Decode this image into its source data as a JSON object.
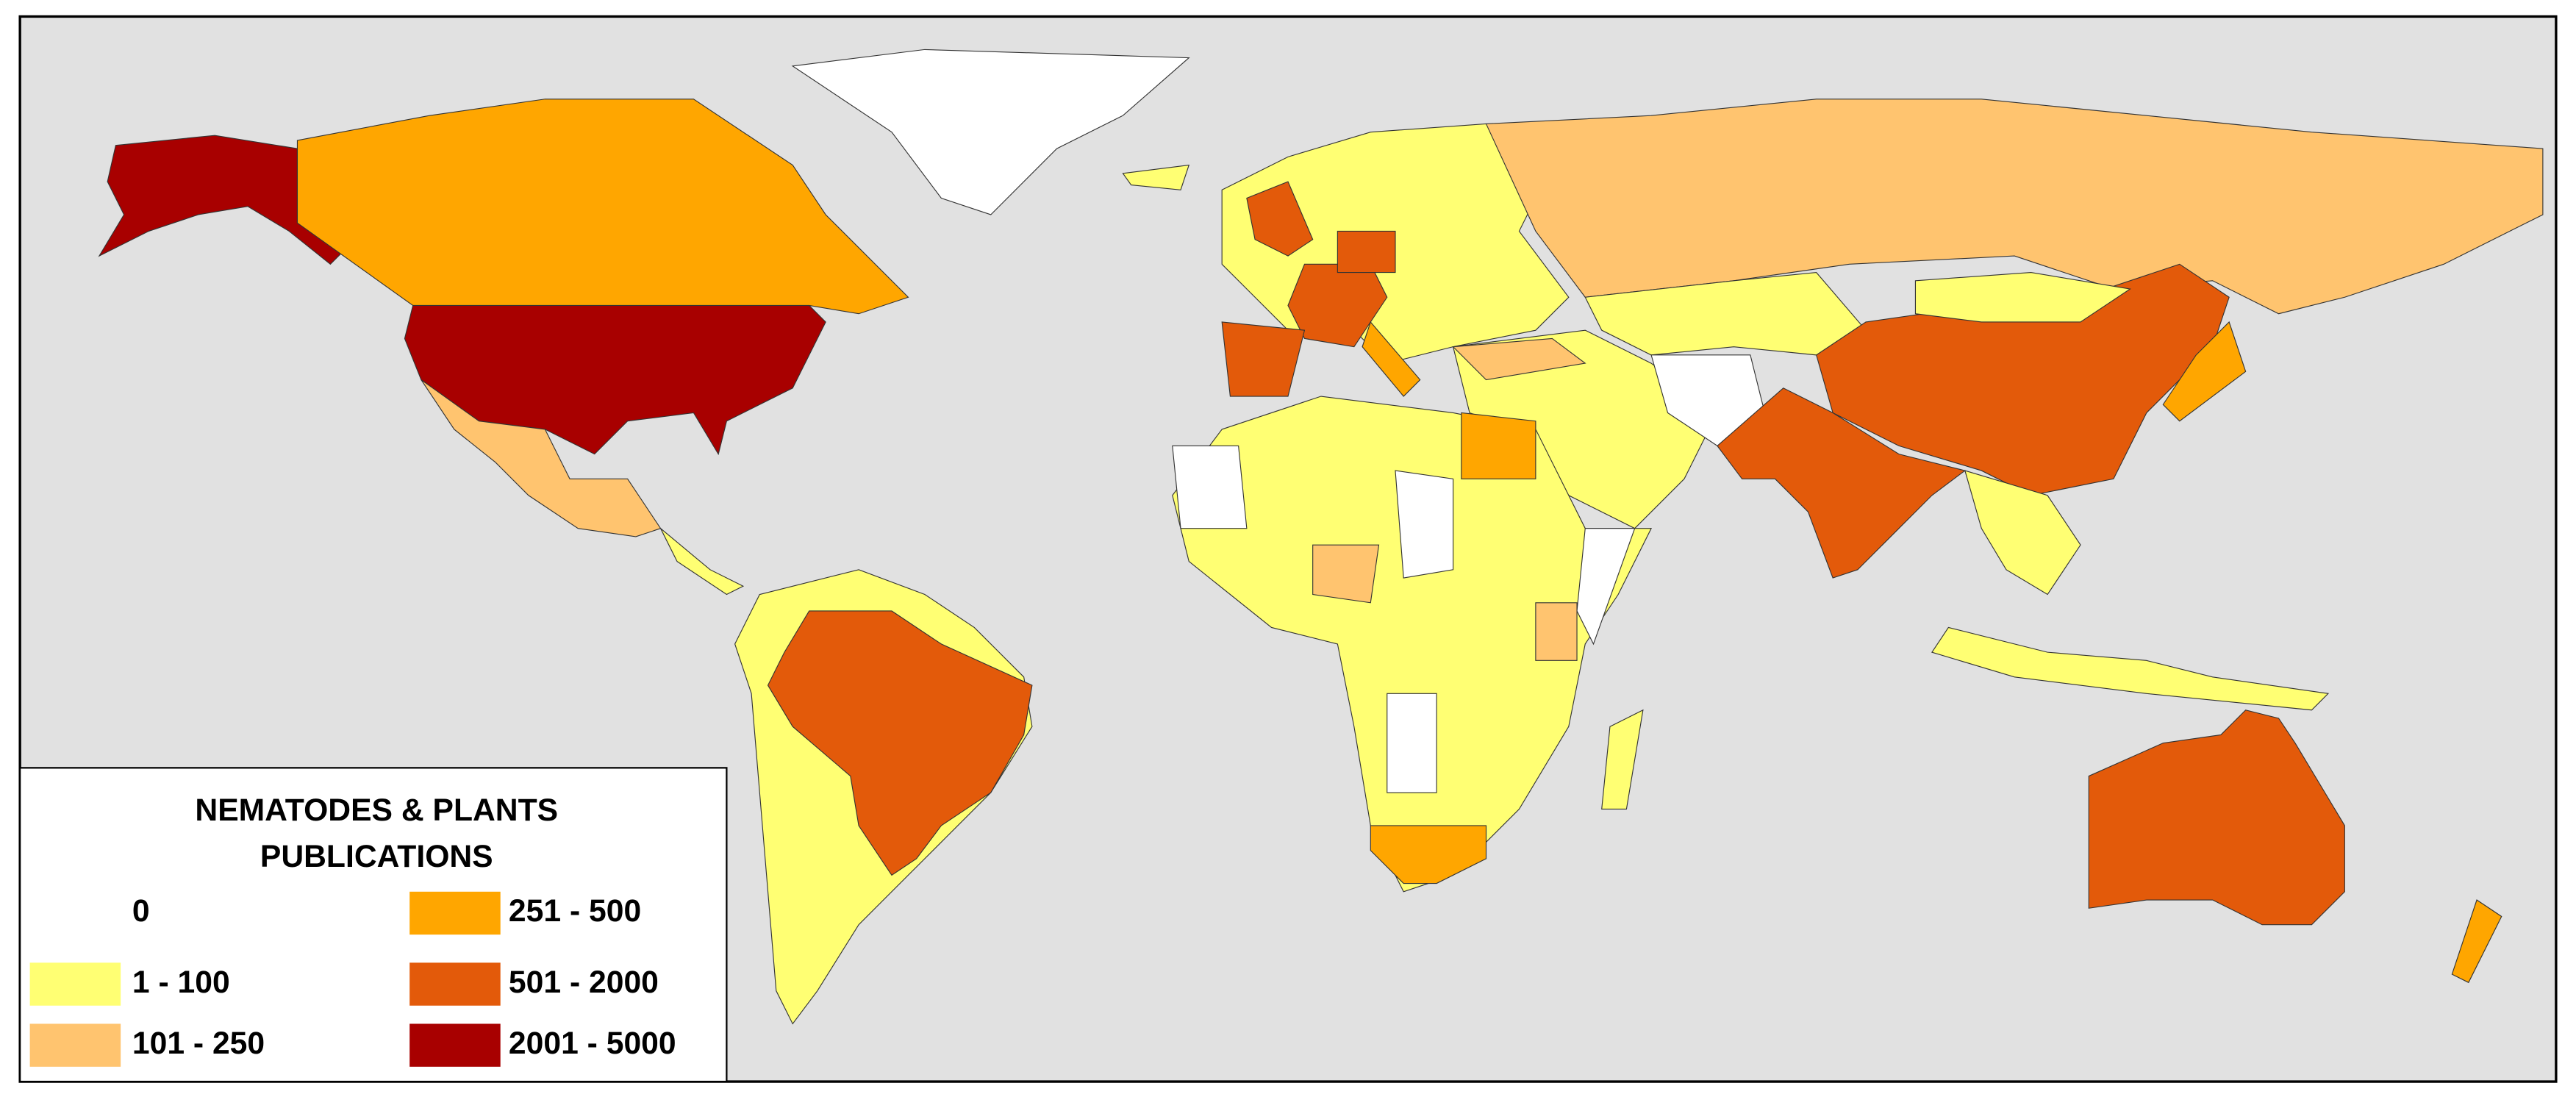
{
  "legend": {
    "title": [
      "NEMATODES & PLANTS",
      "PUBLICATIONS"
    ],
    "items": [
      {
        "label": "0",
        "color": "#ffffff"
      },
      {
        "label": "1 - 100",
        "color": "#ffff73"
      },
      {
        "label": "101 - 250",
        "color": "#ffc46f"
      },
      {
        "label": "251 - 500",
        "color": "#ffa600"
      },
      {
        "label": "501 - 2000",
        "color": "#e35a0a"
      },
      {
        "label": "2001 - 5000",
        "color": "#a80000"
      }
    ]
  }
}
